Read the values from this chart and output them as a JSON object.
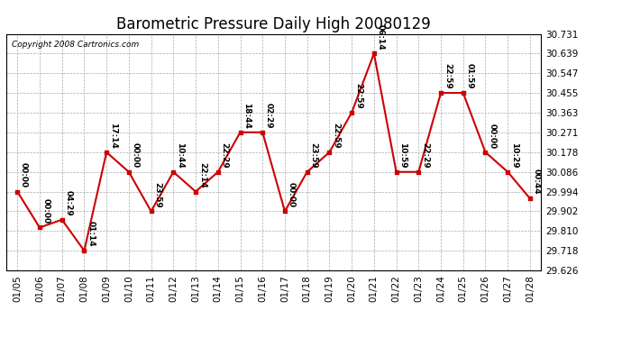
{
  "title": "Barometric Pressure Daily High 20080129",
  "copyright": "Copyright 2008 Cartronics.com",
  "dates": [
    "01/05",
    "01/06",
    "01/07",
    "01/08",
    "01/09",
    "01/10",
    "01/11",
    "01/12",
    "01/13",
    "01/14",
    "01/15",
    "01/16",
    "01/17",
    "01/18",
    "01/19",
    "01/20",
    "01/21",
    "01/22",
    "01/23",
    "01/24",
    "01/25",
    "01/26",
    "01/27",
    "01/28"
  ],
  "values": [
    29.994,
    29.826,
    29.863,
    29.718,
    30.178,
    30.086,
    29.902,
    30.086,
    29.994,
    30.086,
    30.271,
    30.271,
    29.902,
    30.086,
    30.178,
    30.363,
    30.639,
    30.086,
    30.086,
    30.455,
    30.455,
    30.178,
    30.086,
    29.962
  ],
  "annotations": [
    "00:00",
    "00:00",
    "04:29",
    "01:14",
    "17:14",
    "00:00",
    "23:59",
    "10:44",
    "22:14",
    "22:29",
    "18:44",
    "02:29",
    "00:00",
    "23:59",
    "22:59",
    "22:59",
    "06:14",
    "10:59",
    "22:29",
    "22:59",
    "01:59",
    "00:00",
    "10:29",
    "00:44"
  ],
  "y_ticks": [
    29.626,
    29.718,
    29.81,
    29.902,
    29.994,
    30.086,
    30.178,
    30.271,
    30.363,
    30.455,
    30.547,
    30.639,
    30.731
  ],
  "line_color": "#cc0000",
  "marker_color": "#cc0000",
  "bg_color": "#ffffff",
  "grid_color": "#aaaaaa",
  "title_fontsize": 12,
  "annotation_fontsize": 6.5,
  "copyright_fontsize": 6.5,
  "tick_fontsize": 7.5,
  "ylim_min": 29.626,
  "ylim_max": 30.731
}
